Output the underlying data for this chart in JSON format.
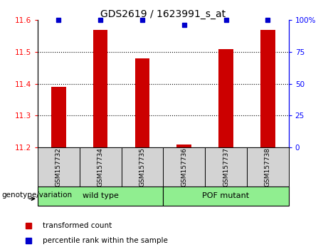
{
  "title": "GDS2619 / 1623991_s_at",
  "samples": [
    "GSM157732",
    "GSM157734",
    "GSM157735",
    "GSM157736",
    "GSM157737",
    "GSM157738"
  ],
  "red_values": [
    11.39,
    11.57,
    11.48,
    11.21,
    11.51,
    11.57
  ],
  "blue_values": [
    100,
    100,
    100,
    96,
    100,
    100
  ],
  "ylim_left": [
    11.2,
    11.6
  ],
  "ylim_right": [
    0,
    100
  ],
  "yticks_left": [
    11.2,
    11.3,
    11.4,
    11.5,
    11.6
  ],
  "yticks_right": [
    0,
    25,
    50,
    75,
    100
  ],
  "ytick_labels_right": [
    "0",
    "25",
    "50",
    "75",
    "100%"
  ],
  "hlines": [
    11.3,
    11.4,
    11.5
  ],
  "bar_color": "#cc0000",
  "dot_color": "#0000cc",
  "base_value": 11.2,
  "group1_label": "wild type",
  "group2_label": "POF mutant",
  "group1_indices": [
    0,
    1,
    2
  ],
  "group2_indices": [
    3,
    4,
    5
  ],
  "group_bg_color": "#90ee90",
  "sample_bg_color": "#d3d3d3",
  "legend_red_label": "transformed count",
  "legend_blue_label": "percentile rank within the sample",
  "genotype_label": "genotype/variation"
}
